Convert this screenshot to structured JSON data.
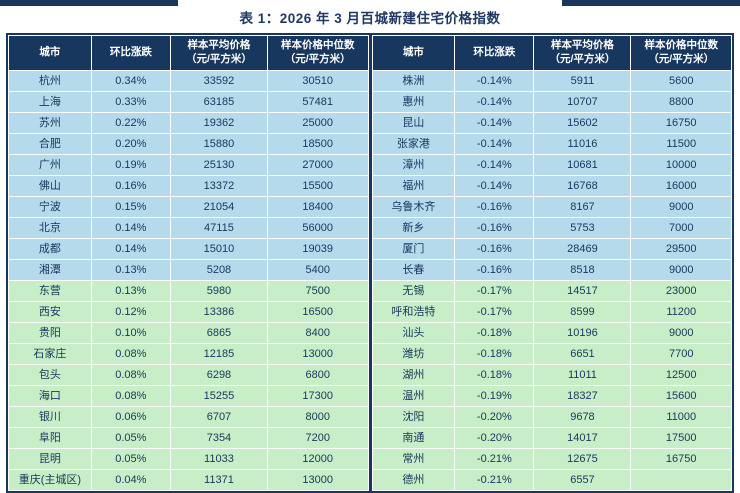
{
  "colors": {
    "navy_header": "#17375E",
    "title_text": "#1F3864",
    "row_blue": "#B5DAEB",
    "row_green": "#C7EEC7",
    "cell_text": "#17375E",
    "header_text": "#FFFFFF",
    "grid_lines": "#FFFFFF"
  },
  "chart_data": {
    "type": "table",
    "title": "表 1：2026 年 3 月百城新建住宅价格指数",
    "columns": [
      {
        "line1": "城市",
        "line2": ""
      },
      {
        "line1": "环比涨跌",
        "line2": ""
      },
      {
        "line1": "样本平均价格",
        "line2": "（元/平方米）"
      },
      {
        "line1": "样本价格中位数",
        "line2": "（元/平方米）"
      }
    ],
    "tables": [
      {
        "green_from": 10,
        "rows": [
          [
            "杭州",
            "0.34%",
            "33592",
            "30510"
          ],
          [
            "上海",
            "0.33%",
            "63185",
            "57481"
          ],
          [
            "苏州",
            "0.22%",
            "19362",
            "25000"
          ],
          [
            "合肥",
            "0.20%",
            "15880",
            "18500"
          ],
          [
            "广州",
            "0.19%",
            "25130",
            "27000"
          ],
          [
            "佛山",
            "0.16%",
            "13372",
            "15500"
          ],
          [
            "宁波",
            "0.15%",
            "21054",
            "18400"
          ],
          [
            "北京",
            "0.14%",
            "47115",
            "56000"
          ],
          [
            "成都",
            "0.14%",
            "15010",
            "19039"
          ],
          [
            "湘潭",
            "0.13%",
            "5208",
            "5400"
          ],
          [
            "东营",
            "0.13%",
            "5980",
            "7500"
          ],
          [
            "西安",
            "0.12%",
            "13386",
            "16500"
          ],
          [
            "贵阳",
            "0.10%",
            "6865",
            "8400"
          ],
          [
            "石家庄",
            "0.08%",
            "12185",
            "13000"
          ],
          [
            "包头",
            "0.08%",
            "6298",
            "6800"
          ],
          [
            "海口",
            "0.08%",
            "15255",
            "17300"
          ],
          [
            "银川",
            "0.06%",
            "6707",
            "8000"
          ],
          [
            "阜阳",
            "0.05%",
            "7354",
            "7200"
          ],
          [
            "昆明",
            "0.05%",
            "11033",
            "12000"
          ],
          [
            "重庆(主城区)",
            "0.04%",
            "11371",
            "13000"
          ]
        ]
      },
      {
        "green_from": 10,
        "rows": [
          [
            "株洲",
            "-0.14%",
            "5911",
            "5600"
          ],
          [
            "惠州",
            "-0.14%",
            "10707",
            "8800"
          ],
          [
            "昆山",
            "-0.14%",
            "15602",
            "16750"
          ],
          [
            "张家港",
            "-0.14%",
            "11016",
            "11500"
          ],
          [
            "漳州",
            "-0.14%",
            "10681",
            "10000"
          ],
          [
            "福州",
            "-0.14%",
            "16768",
            "16000"
          ],
          [
            "乌鲁木齐",
            "-0.16%",
            "8167",
            "9000"
          ],
          [
            "新乡",
            "-0.16%",
            "5753",
            "7000"
          ],
          [
            "厦门",
            "-0.16%",
            "28469",
            "29500"
          ],
          [
            "长春",
            "-0.16%",
            "8518",
            "9000"
          ],
          [
            "无锡",
            "-0.17%",
            "14517",
            "23000"
          ],
          [
            "呼和浩特",
            "-0.17%",
            "8599",
            "11200"
          ],
          [
            "汕头",
            "-0.18%",
            "10196",
            "9000"
          ],
          [
            "潍坊",
            "-0.18%",
            "6651",
            "7700"
          ],
          [
            "湖州",
            "-0.18%",
            "11011",
            "12500"
          ],
          [
            "温州",
            "-0.19%",
            "18327",
            "15600"
          ],
          [
            "沈阳",
            "-0.20%",
            "9678",
            "11000"
          ],
          [
            "南通",
            "-0.20%",
            "14017",
            "17500"
          ],
          [
            "常州",
            "-0.21%",
            "12675",
            "16750"
          ],
          [
            "德州",
            "-0.21%",
            "6557",
            ""
          ]
        ]
      }
    ]
  }
}
